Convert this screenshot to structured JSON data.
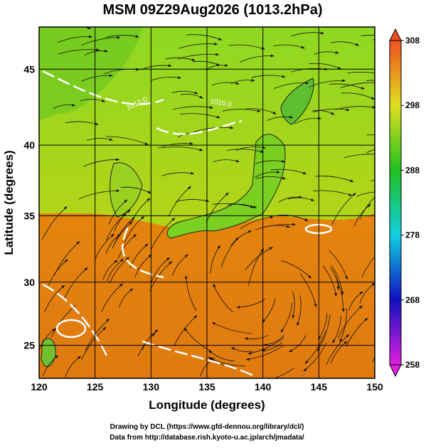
{
  "title": "MSM 09Z29Aug2026 (1013.2hPa)",
  "map": {
    "projection": "mercator",
    "xlabel": "Longitude (degrees)",
    "ylabel": "Latitude  (degrees)",
    "xlim": [
      120,
      150
    ],
    "ylim": [
      22.3,
      47.6
    ],
    "xticks": [
      120,
      125,
      130,
      135,
      140,
      145,
      150
    ],
    "yticks": [
      25,
      30,
      35,
      40,
      45
    ],
    "grid": true,
    "contour_labels": [
      "1010.0",
      "1010.0"
    ]
  },
  "colorbar": {
    "lim": [
      258,
      308
    ],
    "ticks": [
      258,
      268,
      278,
      288,
      298,
      308
    ],
    "colors": [
      "#e020e0",
      "#1010c0",
      "#10d0e0",
      "#20c020",
      "#e0e020",
      "#f05020"
    ]
  },
  "footer": [
    "Drawing by DCL (https://www.gfd-dennou.org/library/dcl/)",
    "Data from http://database.rish.kyoto-u.ac.jp/arch/jmadata/"
  ]
}
